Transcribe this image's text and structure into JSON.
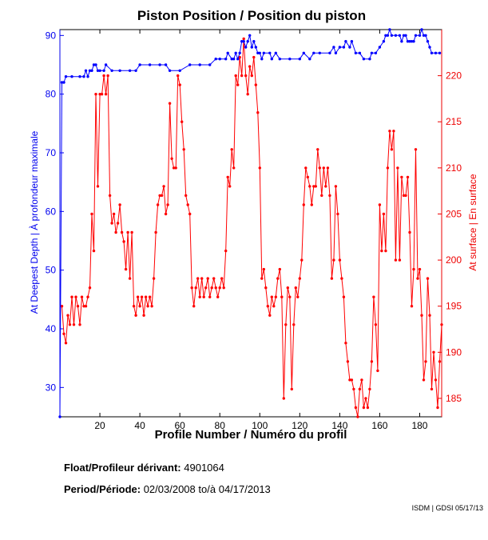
{
  "chart_data": {
    "type": "line",
    "title": "Piston Position / Position du piston",
    "xlabel": "Profile Number / Numéro du profil",
    "ylabel_left": "At Deepest Depth | À profondeur maximale",
    "ylabel_right": "At surface | En surface",
    "xlim": [
      0,
      191
    ],
    "ylim_left": [
      25,
      91
    ],
    "ylim_right": [
      183,
      225
    ],
    "x_ticks": [
      20,
      40,
      60,
      80,
      100,
      120,
      140,
      160,
      180
    ],
    "y_ticks_left": [
      30,
      40,
      50,
      60,
      70,
      80,
      90
    ],
    "y_ticks_right": [
      185,
      190,
      195,
      200,
      205,
      210,
      215,
      220
    ],
    "grid": false,
    "colors": {
      "deepest": "#0000ff",
      "surface": "#ff0000",
      "left_axis": "#0000ee",
      "right_axis": "#ee0000"
    },
    "series": [
      {
        "name": "At Deepest Depth",
        "axis": "left",
        "color": "#0000ff",
        "points": [
          [
            0,
            25
          ],
          [
            1,
            82
          ],
          [
            2,
            82
          ],
          [
            3,
            83
          ],
          [
            6,
            83
          ],
          [
            10,
            83
          ],
          [
            12,
            83
          ],
          [
            13,
            84
          ],
          [
            14,
            83
          ],
          [
            15,
            84
          ],
          [
            16,
            84
          ],
          [
            17,
            85
          ],
          [
            18,
            85
          ],
          [
            19,
            84
          ],
          [
            20,
            84
          ],
          [
            22,
            84
          ],
          [
            23,
            85
          ],
          [
            26,
            84
          ],
          [
            30,
            84
          ],
          [
            35,
            84
          ],
          [
            38,
            84
          ],
          [
            40,
            85
          ],
          [
            45,
            85
          ],
          [
            50,
            85
          ],
          [
            53,
            85
          ],
          [
            55,
            84
          ],
          [
            60,
            84
          ],
          [
            65,
            85
          ],
          [
            70,
            85
          ],
          [
            75,
            85
          ],
          [
            78,
            86
          ],
          [
            80,
            86
          ],
          [
            83,
            86
          ],
          [
            84,
            87
          ],
          [
            86,
            86
          ],
          [
            87,
            86
          ],
          [
            88,
            87
          ],
          [
            89,
            86
          ],
          [
            90,
            87
          ],
          [
            91,
            89
          ],
          [
            92,
            89
          ],
          [
            93,
            88
          ],
          [
            94,
            89
          ],
          [
            95,
            90
          ],
          [
            96,
            88
          ],
          [
            97,
            89
          ],
          [
            98,
            88
          ],
          [
            99,
            87
          ],
          [
            100,
            87
          ],
          [
            101,
            86
          ],
          [
            102,
            87
          ],
          [
            105,
            87
          ],
          [
            106,
            86
          ],
          [
            108,
            87
          ],
          [
            110,
            86
          ],
          [
            115,
            86
          ],
          [
            120,
            86
          ],
          [
            122,
            87
          ],
          [
            125,
            86
          ],
          [
            127,
            87
          ],
          [
            130,
            87
          ],
          [
            135,
            87
          ],
          [
            137,
            88
          ],
          [
            138,
            87
          ],
          [
            140,
            88
          ],
          [
            142,
            88
          ],
          [
            143,
            89
          ],
          [
            145,
            88
          ],
          [
            146,
            89
          ],
          [
            148,
            87
          ],
          [
            150,
            87
          ],
          [
            152,
            86
          ],
          [
            155,
            86
          ],
          [
            156,
            87
          ],
          [
            158,
            87
          ],
          [
            160,
            88
          ],
          [
            162,
            89
          ],
          [
            163,
            90
          ],
          [
            164,
            90
          ],
          [
            165,
            91
          ],
          [
            166,
            90
          ],
          [
            168,
            90
          ],
          [
            170,
            90
          ],
          [
            171,
            89
          ],
          [
            172,
            90
          ],
          [
            173,
            90
          ],
          [
            174,
            89
          ],
          [
            175,
            89
          ],
          [
            176,
            89
          ],
          [
            177,
            89
          ],
          [
            178,
            90
          ],
          [
            180,
            90
          ],
          [
            181,
            91
          ],
          [
            182,
            90
          ],
          [
            183,
            90
          ],
          [
            184,
            89
          ],
          [
            185,
            88
          ],
          [
            186,
            87
          ],
          [
            188,
            87
          ],
          [
            190,
            87
          ]
        ]
      },
      {
        "name": "At surface",
        "axis": "right",
        "color": "#ff0000",
        "points": [
          [
            1,
            195
          ],
          [
            2,
            192
          ],
          [
            3,
            191
          ],
          [
            4,
            194
          ],
          [
            5,
            193
          ],
          [
            6,
            196
          ],
          [
            7,
            193
          ],
          [
            8,
            196
          ],
          [
            9,
            195
          ],
          [
            10,
            193
          ],
          [
            11,
            196
          ],
          [
            12,
            195
          ],
          [
            13,
            195
          ],
          [
            14,
            196
          ],
          [
            15,
            197
          ],
          [
            16,
            205
          ],
          [
            17,
            201
          ],
          [
            18,
            218
          ],
          [
            19,
            208
          ],
          [
            20,
            218
          ],
          [
            21,
            218
          ],
          [
            22,
            220
          ],
          [
            23,
            218
          ],
          [
            24,
            220
          ],
          [
            25,
            207
          ],
          [
            26,
            204
          ],
          [
            27,
            205
          ],
          [
            28,
            203
          ],
          [
            29,
            204
          ],
          [
            30,
            206
          ],
          [
            31,
            203
          ],
          [
            32,
            202
          ],
          [
            33,
            199
          ],
          [
            34,
            203
          ],
          [
            35,
            198
          ],
          [
            36,
            203
          ],
          [
            37,
            195
          ],
          [
            38,
            194
          ],
          [
            39,
            196
          ],
          [
            40,
            195
          ],
          [
            41,
            196
          ],
          [
            42,
            194
          ],
          [
            43,
            196
          ],
          [
            44,
            195
          ],
          [
            45,
            196
          ],
          [
            46,
            195
          ],
          [
            47,
            198
          ],
          [
            48,
            203
          ],
          [
            49,
            206
          ],
          [
            50,
            207
          ],
          [
            51,
            207
          ],
          [
            52,
            208
          ],
          [
            53,
            205
          ],
          [
            54,
            206
          ],
          [
            55,
            217
          ],
          [
            56,
            211
          ],
          [
            57,
            210
          ],
          [
            58,
            210
          ],
          [
            59,
            220
          ],
          [
            60,
            219
          ],
          [
            61,
            215
          ],
          [
            62,
            212
          ],
          [
            63,
            207
          ],
          [
            64,
            206
          ],
          [
            65,
            205
          ],
          [
            66,
            197
          ],
          [
            67,
            195
          ],
          [
            68,
            197
          ],
          [
            69,
            198
          ],
          [
            70,
            196
          ],
          [
            71,
            198
          ],
          [
            72,
            196
          ],
          [
            73,
            197
          ],
          [
            74,
            198
          ],
          [
            75,
            196
          ],
          [
            76,
            197
          ],
          [
            77,
            198
          ],
          [
            78,
            197
          ],
          [
            79,
            196
          ],
          [
            80,
            197
          ],
          [
            81,
            198
          ],
          [
            82,
            197
          ],
          [
            83,
            201
          ],
          [
            84,
            209
          ],
          [
            85,
            208
          ],
          [
            86,
            212
          ],
          [
            87,
            210
          ],
          [
            88,
            220
          ],
          [
            89,
            219
          ],
          [
            90,
            222
          ],
          [
            91,
            220
          ],
          [
            92,
            224
          ],
          [
            93,
            220
          ],
          [
            94,
            218
          ],
          [
            95,
            221
          ],
          [
            96,
            220
          ],
          [
            97,
            222
          ],
          [
            98,
            219
          ],
          [
            99,
            216
          ],
          [
            100,
            210
          ],
          [
            101,
            198
          ],
          [
            102,
            199
          ],
          [
            103,
            197
          ],
          [
            104,
            195
          ],
          [
            105,
            194
          ],
          [
            106,
            196
          ],
          [
            107,
            195
          ],
          [
            108,
            196
          ],
          [
            109,
            198
          ],
          [
            110,
            199
          ],
          [
            111,
            196
          ],
          [
            112,
            185
          ],
          [
            113,
            193
          ],
          [
            114,
            197
          ],
          [
            115,
            196
          ],
          [
            116,
            186
          ],
          [
            117,
            193
          ],
          [
            118,
            197
          ],
          [
            119,
            196
          ],
          [
            120,
            198
          ],
          [
            121,
            200
          ],
          [
            122,
            206
          ],
          [
            123,
            210
          ],
          [
            124,
            209
          ],
          [
            125,
            208
          ],
          [
            126,
            206
          ],
          [
            127,
            208
          ],
          [
            128,
            208
          ],
          [
            129,
            212
          ],
          [
            130,
            210
          ],
          [
            131,
            207
          ],
          [
            132,
            210
          ],
          [
            133,
            208
          ],
          [
            134,
            210
          ],
          [
            135,
            207
          ],
          [
            136,
            198
          ],
          [
            137,
            200
          ],
          [
            138,
            208
          ],
          [
            139,
            205
          ],
          [
            140,
            200
          ],
          [
            141,
            198
          ],
          [
            142,
            196
          ],
          [
            143,
            191
          ],
          [
            144,
            189
          ],
          [
            145,
            187
          ],
          [
            146,
            187
          ],
          [
            147,
            186
          ],
          [
            148,
            184
          ],
          [
            149,
            183
          ],
          [
            150,
            186
          ],
          [
            151,
            187
          ],
          [
            152,
            184
          ],
          [
            153,
            185
          ],
          [
            154,
            184
          ],
          [
            155,
            186
          ],
          [
            156,
            189
          ],
          [
            157,
            196
          ],
          [
            158,
            193
          ],
          [
            159,
            188
          ],
          [
            160,
            206
          ],
          [
            161,
            201
          ],
          [
            162,
            205
          ],
          [
            163,
            201
          ],
          [
            164,
            210
          ],
          [
            165,
            214
          ],
          [
            166,
            212
          ],
          [
            167,
            214
          ],
          [
            168,
            200
          ],
          [
            169,
            210
          ],
          [
            170,
            200
          ],
          [
            171,
            209
          ],
          [
            172,
            207
          ],
          [
            173,
            207
          ],
          [
            174,
            209
          ],
          [
            175,
            203
          ],
          [
            176,
            195
          ],
          [
            177,
            199
          ],
          [
            178,
            212
          ],
          [
            179,
            198
          ],
          [
            180,
            199
          ],
          [
            181,
            194
          ],
          [
            182,
            187
          ],
          [
            183,
            189
          ],
          [
            184,
            198
          ],
          [
            185,
            194
          ],
          [
            186,
            186
          ],
          [
            187,
            190
          ],
          [
            188,
            187
          ],
          [
            189,
            184
          ],
          [
            190,
            189
          ],
          [
            191,
            193
          ]
        ]
      }
    ]
  },
  "meta": {
    "float_label": "Float/Profileur dérivant:",
    "float_id": "4901064",
    "period_label": "Period/Période:",
    "period_start": "02/03/2008",
    "period_sep": "to/à",
    "period_end": "04/17/2013"
  },
  "credit": "ISDM | GDSI 05/17/13"
}
